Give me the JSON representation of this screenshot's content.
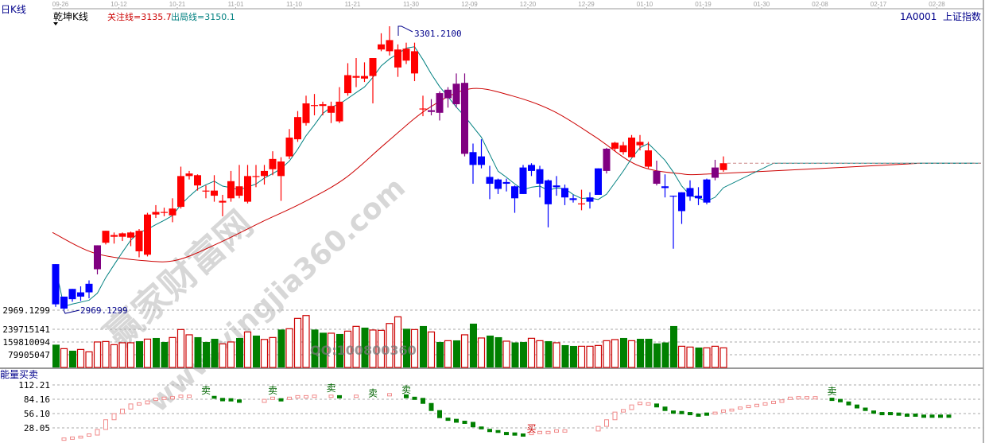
{
  "header": {
    "period_label": "日K线",
    "indicator_name": "乾坤K线",
    "focus_line": "关注线=3135.7",
    "exit_line": "出局线=3150.1",
    "symbol": "1A0001  上证指数"
  },
  "watermark": {
    "text": "赢家财富网",
    "url": "www.yingjia360.com",
    "qq": "QQ:100800360"
  },
  "colors": {
    "up": "#ff0000",
    "down": "#0000ff",
    "neutral": "#800080",
    "ma_short": "#008080",
    "ma_long": "#cc0000",
    "vol_up": "#cc0000",
    "vol_down": "#008000",
    "ind_up": "#f08a8a",
    "ind_down": "#008000"
  },
  "chart_data": [
    {
      "type": "candlestick",
      "title": "乾坤K线",
      "x_tick_labels": [
        "09-26",
        "10-12",
        "10-21",
        "11-01",
        "11-10",
        "11-21",
        "11-30",
        "12-09",
        "12-20",
        "12-29",
        "01-10",
        "01-19",
        "01-30",
        "02-08",
        "02-17",
        "02-28"
      ],
      "y_labels": {
        "low": "2969.1299",
        "high_annotation": "3301.2100",
        "low_annotation": "2969.1299"
      },
      "ylim": [
        2969.13,
        3301.21
      ],
      "grid": false,
      "candles": [
        [
          3023,
          3023,
          2973,
          2976,
          "b"
        ],
        [
          2985,
          2985,
          2969.13,
          2971,
          "b"
        ],
        [
          2994,
          2994,
          2979,
          2982,
          "b"
        ],
        [
          2990,
          2997,
          2980,
          2985,
          "b"
        ],
        [
          3000,
          3004,
          2983,
          2990,
          "b"
        ],
        [
          3045,
          3045,
          3011,
          3017,
          "p"
        ],
        [
          3048,
          3062,
          3046,
          3062,
          "r"
        ],
        [
          3055,
          3060,
          3047,
          3057,
          "r"
        ],
        [
          3055,
          3060,
          3050,
          3059,
          "r"
        ],
        [
          3054,
          3061,
          3044,
          3060,
          "r"
        ],
        [
          3038,
          3064,
          3031,
          3062,
          "r"
        ],
        [
          3034,
          3083,
          3032,
          3081,
          "r"
        ],
        [
          3081,
          3092,
          3077,
          3084,
          "r"
        ],
        [
          3083,
          3089,
          3079,
          3084,
          "r"
        ],
        [
          3080,
          3100,
          3072,
          3088,
          "r"
        ],
        [
          3090,
          3137,
          3088,
          3126,
          "r"
        ],
        [
          3126,
          3132,
          3122,
          3129,
          "r"
        ],
        [
          3115,
          3128,
          3109,
          3127,
          "r"
        ],
        [
          3108,
          3115,
          3100,
          3109,
          "r"
        ],
        [
          3103,
          3127,
          3096,
          3109,
          "r"
        ],
        [
          3095,
          3104,
          3079,
          3097,
          "r"
        ],
        [
          3100,
          3132,
          3096,
          3120,
          "r"
        ],
        [
          3103,
          3139,
          3100,
          3114,
          "r"
        ],
        [
          3096,
          3139,
          3094,
          3126,
          "r"
        ],
        [
          3125,
          3139,
          3113,
          3126,
          "r"
        ],
        [
          3126,
          3139,
          3116,
          3132,
          "r"
        ],
        [
          3134,
          3155,
          3127,
          3146,
          "r"
        ],
        [
          3126,
          3148,
          3097,
          3143,
          "r"
        ],
        [
          3149,
          3181,
          3146,
          3171,
          "r"
        ],
        [
          3169,
          3202,
          3166,
          3195,
          "r"
        ],
        [
          3188,
          3220,
          3185,
          3211,
          "r"
        ],
        [
          3208,
          3222,
          3197,
          3209,
          "r"
        ],
        [
          3208,
          3213,
          3197,
          3210,
          "r"
        ],
        [
          3200,
          3213,
          3188,
          3208,
          "r"
        ],
        [
          3190,
          3230,
          3188,
          3213,
          "r"
        ],
        [
          3223,
          3258,
          3220,
          3244,
          "r"
        ],
        [
          3241,
          3264,
          3230,
          3243,
          "r"
        ],
        [
          3240,
          3259,
          3236,
          3243,
          "r"
        ],
        [
          3243,
          3264,
          3211,
          3264,
          "r"
        ],
        [
          3274,
          3293,
          3272,
          3280,
          "r"
        ],
        [
          3272,
          3301.21,
          3267,
          3285,
          "r"
        ],
        [
          3253,
          3280,
          3242,
          3274,
          "r"
        ],
        [
          3261,
          3282,
          3257,
          3275,
          "r"
        ],
        [
          3246,
          3282,
          3237,
          3272,
          "r"
        ],
        [
          3205,
          3220,
          3196,
          3205,
          "r"
        ],
        [
          3203,
          3216,
          3197,
          3201,
          "p"
        ],
        [
          3223,
          3225,
          3191,
          3200,
          "p"
        ],
        [
          3227,
          3230,
          3206,
          3217,
          "p"
        ],
        [
          3234,
          3246,
          3206,
          3210,
          "p"
        ],
        [
          3235,
          3246,
          3149,
          3152,
          "p"
        ],
        [
          3154,
          3164,
          3117,
          3139,
          "b"
        ],
        [
          3149,
          3169,
          3135,
          3139,
          "b"
        ],
        [
          3125,
          3138,
          3099,
          3117,
          "b"
        ],
        [
          3122,
          3123,
          3105,
          3111,
          "b"
        ],
        [
          3119,
          3123,
          3108,
          3117,
          "b"
        ],
        [
          3114,
          3115,
          3083,
          3100,
          "b"
        ],
        [
          3136,
          3139,
          3105,
          3105,
          "b"
        ],
        [
          3139,
          3141,
          3126,
          3132,
          "b"
        ],
        [
          3134,
          3138,
          3101,
          3117,
          "b"
        ],
        [
          3121,
          3122,
          3066,
          3093,
          "b"
        ],
        [
          3115,
          3126,
          3103,
          3113,
          "b"
        ],
        [
          3112,
          3116,
          3092,
          3101,
          "b"
        ],
        [
          3100,
          3104,
          3095,
          3098,
          "b"
        ],
        [
          3093,
          3110,
          3086,
          3094,
          "r"
        ],
        [
          3101,
          3107,
          3088,
          3096,
          "b"
        ],
        [
          3135,
          3135,
          3104,
          3104,
          "b"
        ],
        [
          3158,
          3159,
          3129,
          3132,
          "p"
        ],
        [
          3158,
          3166,
          3155,
          3165,
          "r"
        ],
        [
          3154,
          3166,
          3151,
          3162,
          "r"
        ],
        [
          3148,
          3174,
          3148,
          3171,
          "r"
        ],
        [
          3162,
          3174,
          3156,
          3166,
          "r"
        ],
        [
          3137,
          3166,
          3135,
          3156,
          "r"
        ],
        [
          3132,
          3144,
          3115,
          3117,
          "p"
        ],
        [
          3114,
          3128,
          3101,
          3112,
          "b"
        ],
        [
          3103,
          3103,
          3041,
          3102,
          "b"
        ],
        [
          3107,
          3107,
          3070,
          3085,
          "b"
        ],
        [
          3112,
          3121,
          3097,
          3102,
          "b"
        ],
        [
          3103,
          3113,
          3092,
          3100,
          "b"
        ],
        [
          3122,
          3123,
          3093,
          3095,
          "b"
        ],
        [
          3136,
          3145,
          3121,
          3124,
          "p"
        ],
        [
          3133,
          3149,
          3131,
          3141,
          "r"
        ]
      ],
      "ma_long_samples": [
        [
          0,
          3060
        ],
        [
          5,
          3036
        ],
        [
          11,
          3027
        ],
        [
          15,
          3028
        ],
        [
          20,
          3048
        ],
        [
          25,
          3072
        ],
        [
          30,
          3095
        ],
        [
          35,
          3123
        ],
        [
          40,
          3165
        ],
        [
          45,
          3205
        ],
        [
          50,
          3228
        ],
        [
          55,
          3220
        ],
        [
          60,
          3202
        ],
        [
          65,
          3172
        ],
        [
          70,
          3139
        ],
        [
          75,
          3129
        ],
        [
          80,
          3129
        ],
        [
          104,
          3141
        ]
      ],
      "ma_short_extension": [
        [
          80,
          3130
        ],
        [
          86,
          3141
        ],
        [
          110,
          3141
        ]
      ],
      "last_price_line": 3141
    },
    {
      "type": "bar",
      "title": "",
      "y_tick_labels": [
        "239715141",
        "159810094",
        "79905047"
      ],
      "y_ticks": [
        239715141,
        159810094,
        79905047
      ],
      "unit": "millions (shares)",
      "values": [
        143,
        118,
        105,
        113,
        98,
        160,
        163,
        143,
        155,
        155,
        165,
        178,
        185,
        160,
        188,
        238,
        205,
        190,
        160,
        180,
        148,
        160,
        185,
        223,
        200,
        176,
        188,
        238,
        243,
        308,
        326,
        238,
        218,
        215,
        210,
        228,
        258,
        250,
        235,
        233,
        276,
        318,
        243,
        238,
        260,
        223,
        160,
        168,
        170,
        205,
        275,
        185,
        200,
        190,
        165,
        157,
        160,
        183,
        168,
        165,
        155,
        140,
        135,
        133,
        133,
        138,
        168,
        175,
        185,
        168,
        180,
        180,
        151,
        157,
        260,
        133,
        128,
        125,
        123,
        133,
        123
      ],
      "colors": [
        "g",
        "r",
        "g",
        "r",
        "r",
        "r",
        "r",
        "r",
        "r",
        "r",
        "g",
        "r",
        "g",
        "g",
        "r",
        "r",
        "r",
        "g",
        "g",
        "g",
        "r",
        "r",
        "g",
        "r",
        "g",
        "r",
        "r",
        "g",
        "r",
        "r",
        "r",
        "g",
        "g",
        "r",
        "g",
        "r",
        "r",
        "g",
        "r",
        "r",
        "r",
        "r",
        "g",
        "r",
        "g",
        "r",
        "g",
        "r",
        "g",
        "r",
        "g",
        "r",
        "g",
        "g",
        "r",
        "g",
        "g",
        "r",
        "r",
        "g",
        "r",
        "g",
        "g",
        "r",
        "r",
        "r",
        "r",
        "r",
        "g",
        "r",
        "g",
        "g",
        "g",
        "g",
        "g",
        "r",
        "r",
        "g",
        "r",
        "r",
        "r"
      ]
    },
    {
      "type": "bar",
      "title": "能量买卖",
      "y_tick_labels": [
        "112.21",
        "84.16",
        "56.10",
        "28.05"
      ],
      "y_ticks": [
        112.21,
        84.16,
        56.1,
        28.05
      ],
      "values": [
        [
          6,
          "u"
        ],
        [
          8,
          "u"
        ],
        [
          12,
          "u"
        ],
        [
          14,
          "u"
        ],
        [
          25,
          "u"
        ],
        [
          44,
          "u"
        ],
        [
          56,
          "u"
        ],
        [
          65,
          "u"
        ],
        [
          75,
          "u"
        ],
        [
          75,
          "u"
        ],
        [
          81,
          "u"
        ],
        [
          84,
          "u"
        ],
        [
          86,
          "u"
        ],
        [
          87,
          "u"
        ],
        [
          90,
          "u"
        ],
        [
          90,
          "u"
        ],
        null,
        null,
        [
          86,
          "d"
        ],
        [
          81,
          "d"
        ],
        [
          83,
          "d"
        ],
        [
          78,
          "d"
        ],
        null,
        null,
        [
          84,
          "u"
        ],
        [
          86,
          "u"
        ],
        [
          83,
          "d"
        ],
        [
          86,
          "u"
        ],
        [
          89,
          "u"
        ],
        [
          89,
          "u"
        ],
        [
          90,
          "u"
        ],
        null,
        [
          90,
          "u"
        ],
        [
          89,
          "d"
        ],
        null,
        [
          90,
          "u"
        ],
        null,
        null,
        null,
        [
          93,
          "u"
        ],
        null,
        [
          87,
          "d"
        ],
        [
          86,
          "d"
        ],
        [
          76,
          "d"
        ],
        [
          62,
          "d"
        ],
        [
          48,
          "d"
        ],
        [
          45,
          "d"
        ],
        [
          39,
          "d"
        ],
        [
          39,
          "d"
        ],
        [
          30,
          "d"
        ],
        [
          26,
          "d"
        ],
        [
          23,
          "d"
        ],
        [
          19,
          "d"
        ],
        [
          17,
          "d"
        ],
        [
          16,
          "d"
        ],
        [
          14,
          "d"
        ],
        [
          17,
          "u"
        ],
        [
          19,
          "u"
        ],
        [
          19,
          "u"
        ],
        [
          22,
          "u"
        ],
        [
          22,
          "u"
        ],
        null,
        null,
        null,
        [
          31,
          "u"
        ],
        [
          44,
          "u"
        ],
        [
          59,
          "u"
        ],
        [
          64,
          "u"
        ],
        [
          73,
          "u"
        ],
        [
          76,
          "u"
        ],
        [
          75,
          "u"
        ],
        [
          69,
          "d"
        ],
        [
          62,
          "d"
        ],
        [
          59,
          "d"
        ],
        [
          58,
          "d"
        ],
        [
          56,
          "d"
        ],
        [
          53,
          "d"
        ],
        [
          55,
          "d"
        ],
        [
          59,
          "u"
        ],
        [
          61,
          "u"
        ],
        [
          65,
          "u"
        ],
        [
          69,
          "u"
        ],
        [
          70,
          "u"
        ],
        [
          72,
          "u"
        ],
        [
          75,
          "u"
        ],
        [
          78,
          "u"
        ],
        [
          83,
          "u"
        ],
        [
          86,
          "u"
        ],
        [
          87,
          "u"
        ],
        [
          87,
          "u"
        ],
        [
          87,
          "u"
        ],
        null,
        [
          84,
          "d"
        ],
        [
          79,
          "d"
        ],
        [
          73,
          "d"
        ],
        [
          67,
          "d"
        ],
        [
          62,
          "d"
        ],
        [
          59,
          "d"
        ],
        [
          56,
          "d"
        ],
        [
          56,
          "d"
        ],
        [
          55,
          "d"
        ],
        [
          53,
          "d"
        ],
        [
          53,
          "d"
        ],
        [
          51,
          "d"
        ],
        [
          51,
          "d"
        ],
        [
          51,
          "d"
        ],
        [
          51,
          "d"
        ]
      ],
      "signals": [
        {
          "index": 17,
          "label": "卖"
        },
        {
          "index": 25,
          "label": "卖"
        },
        {
          "index": 32,
          "label": "卖"
        },
        {
          "index": 37,
          "label": "卖"
        },
        {
          "index": 41,
          "label": "卖"
        },
        {
          "index": 56,
          "label": "买"
        },
        {
          "index": 92,
          "label": "卖"
        }
      ]
    }
  ]
}
